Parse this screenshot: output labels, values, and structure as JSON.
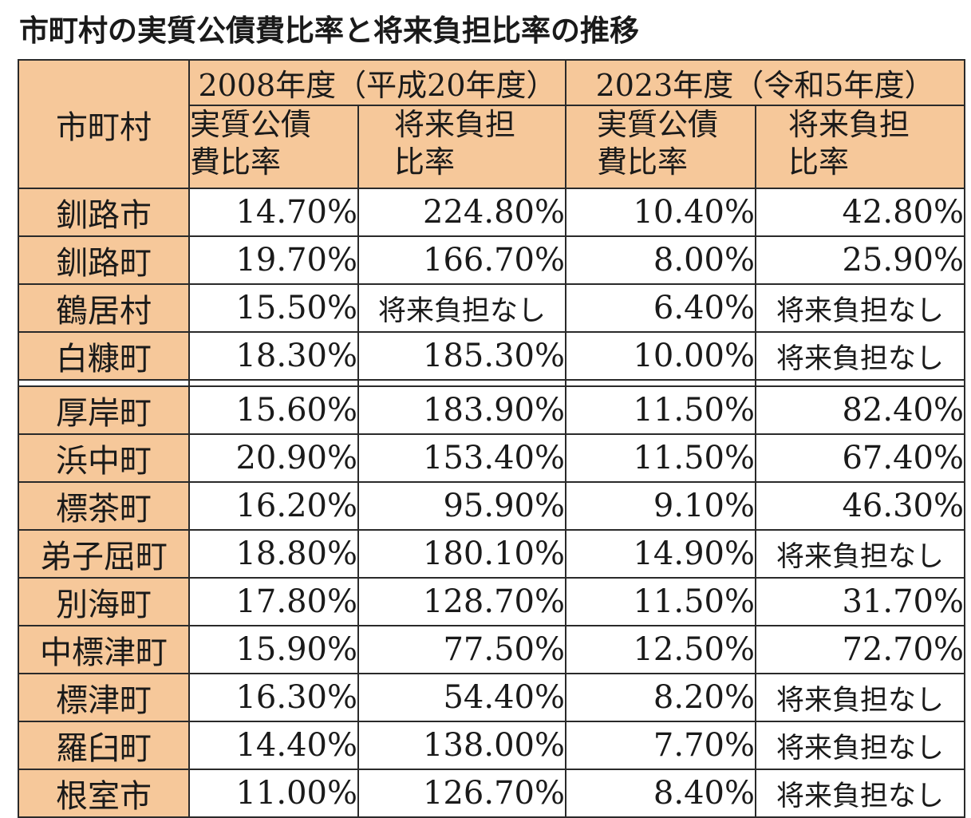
{
  "title": "市町村の実質公債費比率と将来負担比率の推移",
  "header": {
    "city": "市町村",
    "period_2008": "2008年度（平成20年度）",
    "period_2023": "2023年度（令和5年度）",
    "col_debt_service_line1": "実質公債",
    "col_debt_service_line2": "費比率",
    "col_future_burden_line1": "将来負担",
    "col_future_burden_line2": "比率"
  },
  "group_a": [
    {
      "city": "釧路市",
      "d2008": "14.70%",
      "f2008": "224.80%",
      "d2023": "10.40%",
      "f2023": "42.80%"
    },
    {
      "city": "釧路町",
      "d2008": "19.70%",
      "f2008": "166.70%",
      "d2023": "8.00%",
      "f2023": "25.90%"
    },
    {
      "city": "鶴居村",
      "d2008": "15.50%",
      "f2008": "将来負担なし",
      "d2023": "6.40%",
      "f2023": "将来負担なし"
    },
    {
      "city": "白糠町",
      "d2008": "18.30%",
      "f2008": "185.30%",
      "d2023": "10.00%",
      "f2023": "将来負担なし"
    }
  ],
  "group_b": [
    {
      "city": "厚岸町",
      "d2008": "15.60%",
      "f2008": "183.90%",
      "d2023": "11.50%",
      "f2023": "82.40%"
    },
    {
      "city": "浜中町",
      "d2008": "20.90%",
      "f2008": "153.40%",
      "d2023": "11.50%",
      "f2023": "67.40%"
    },
    {
      "city": "標茶町",
      "d2008": "16.20%",
      "f2008": "95.90%",
      "d2023": "9.10%",
      "f2023": "46.30%"
    },
    {
      "city": "弟子屈町",
      "d2008": "18.80%",
      "f2008": "180.10%",
      "d2023": "14.90%",
      "f2023": "将来負担なし"
    },
    {
      "city": "別海町",
      "d2008": "17.80%",
      "f2008": "128.70%",
      "d2023": "11.50%",
      "f2023": "31.70%"
    },
    {
      "city": "中標津町",
      "d2008": "15.90%",
      "f2008": "77.50%",
      "d2023": "12.50%",
      "f2023": "72.70%"
    },
    {
      "city": "標津町",
      "d2008": "16.30%",
      "f2008": "54.40%",
      "d2023": "8.20%",
      "f2023": "将来負担なし"
    },
    {
      "city": "羅臼町",
      "d2008": "14.40%",
      "f2008": "138.00%",
      "d2023": "7.70%",
      "f2023": "将来負担なし"
    },
    {
      "city": "根室市",
      "d2008": "11.00%",
      "f2008": "126.70%",
      "d2023": "8.40%",
      "f2023": "将来負担なし"
    }
  ],
  "colors": {
    "header_fill": "#f6c89a",
    "border": "#2a2a2a",
    "text": "#1a1a1a"
  }
}
